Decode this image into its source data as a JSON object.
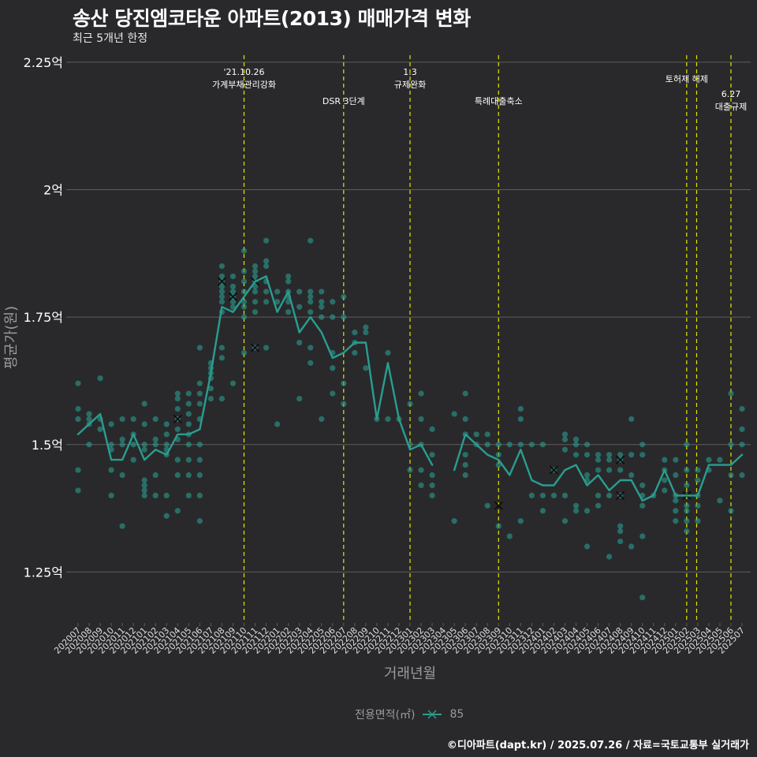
{
  "title": "송산 당진엠코타운 아파트(2013) 매매가격 변화",
  "subtitle": "최근 5개년 한정",
  "footer": "©디아파트(dapt.kr) / 2025.07.26 / 자료=국토교통부 실거래가",
  "colors": {
    "background": "#29292b",
    "series": "#2a9d8f",
    "grid": "#5e5e5e",
    "event_line": "#e6e600",
    "axis_text": "#ffffff",
    "axis_title": "#9a9a9a"
  },
  "chart_data": {
    "type": "line",
    "xlabel": "거래년월",
    "ylabel": "평균가(원)",
    "ylim": [
      1.15,
      2.27
    ],
    "yticks": [
      {
        "value": 1.25,
        "label": "1.25억"
      },
      {
        "value": 1.5,
        "label": "1.5억"
      },
      {
        "value": 1.75,
        "label": "1.75억"
      },
      {
        "value": 2.0,
        "label": "2억"
      },
      {
        "value": 2.25,
        "label": "2.25억"
      }
    ],
    "grid": true,
    "legend_position": "bottom",
    "legend_title": "전용면적(㎡)",
    "categories": [
      "202007",
      "202008",
      "202009",
      "202010",
      "202011",
      "202012",
      "202101",
      "202102",
      "202103",
      "202104",
      "202105",
      "202106",
      "202107",
      "202108",
      "202109",
      "202110",
      "202111",
      "202112",
      "202201",
      "202202",
      "202203",
      "202204",
      "202205",
      "202206",
      "202207",
      "202208",
      "202209",
      "202210",
      "202211",
      "202212",
      "202301",
      "202302",
      "202303",
      "202304",
      "202305",
      "202306",
      "202307",
      "202308",
      "202309",
      "202310",
      "202311",
      "202312",
      "202401",
      "202402",
      "202403",
      "202404",
      "202405",
      "202406",
      "202407",
      "202408",
      "202409",
      "202410",
      "202411",
      "202412",
      "202501",
      "202502",
      "202503",
      "202504",
      "202505",
      "202506",
      "202507"
    ],
    "series": [
      {
        "name": "85",
        "values": [
          1.52,
          1.54,
          1.56,
          1.47,
          1.47,
          1.52,
          1.47,
          1.49,
          1.48,
          1.52,
          1.52,
          1.53,
          1.64,
          1.77,
          1.76,
          1.79,
          1.82,
          1.83,
          1.76,
          1.8,
          1.72,
          1.75,
          1.72,
          1.67,
          1.68,
          1.7,
          1.7,
          1.55,
          1.66,
          1.55,
          1.49,
          1.5,
          1.46,
          null,
          1.45,
          1.52,
          1.5,
          1.48,
          1.47,
          1.44,
          1.49,
          1.43,
          1.42,
          1.42,
          1.45,
          1.46,
          1.42,
          1.44,
          1.41,
          1.43,
          1.43,
          1.39,
          1.4,
          1.45,
          1.4,
          1.4,
          1.4,
          1.46,
          1.46,
          1.46,
          1.48
        ]
      }
    ],
    "scatter": [
      [
        0,
        1.62
      ],
      [
        0,
        1.57
      ],
      [
        0,
        1.55
      ],
      [
        0,
        1.45
      ],
      [
        0,
        1.41
      ],
      [
        1,
        1.56
      ],
      [
        1,
        1.55
      ],
      [
        1,
        1.54
      ],
      [
        1,
        1.5
      ],
      [
        2,
        1.63
      ],
      [
        2,
        1.55
      ],
      [
        2,
        1.53
      ],
      [
        3,
        1.54
      ],
      [
        3,
        1.5
      ],
      [
        3,
        1.49
      ],
      [
        3,
        1.45
      ],
      [
        3,
        1.4
      ],
      [
        4,
        1.55
      ],
      [
        4,
        1.51
      ],
      [
        4,
        1.5
      ],
      [
        4,
        1.44
      ],
      [
        4,
        1.34
      ],
      [
        5,
        1.55
      ],
      [
        5,
        1.52
      ],
      [
        5,
        1.5
      ],
      [
        5,
        1.47
      ],
      [
        6,
        1.58
      ],
      [
        6,
        1.54
      ],
      [
        6,
        1.5
      ],
      [
        6,
        1.49
      ],
      [
        6,
        1.43
      ],
      [
        6,
        1.42
      ],
      [
        6,
        1.41
      ],
      [
        6,
        1.4
      ],
      [
        7,
        1.55
      ],
      [
        7,
        1.51
      ],
      [
        7,
        1.5
      ],
      [
        7,
        1.44
      ],
      [
        7,
        1.4
      ],
      [
        8,
        1.54
      ],
      [
        8,
        1.52
      ],
      [
        8,
        1.5
      ],
      [
        8,
        1.49
      ],
      [
        8,
        1.48
      ],
      [
        8,
        1.4
      ],
      [
        8,
        1.36
      ],
      [
        9,
        1.6
      ],
      [
        9,
        1.59
      ],
      [
        9,
        1.57
      ],
      [
        9,
        1.55
      ],
      [
        9,
        1.53
      ],
      [
        9,
        1.51
      ],
      [
        9,
        1.47
      ],
      [
        9,
        1.44
      ],
      [
        9,
        1.37
      ],
      [
        10,
        1.6
      ],
      [
        10,
        1.58
      ],
      [
        10,
        1.56
      ],
      [
        10,
        1.54
      ],
      [
        10,
        1.52
      ],
      [
        10,
        1.5
      ],
      [
        10,
        1.47
      ],
      [
        10,
        1.44
      ],
      [
        10,
        1.4
      ],
      [
        11,
        1.69
      ],
      [
        11,
        1.62
      ],
      [
        11,
        1.6
      ],
      [
        11,
        1.58
      ],
      [
        11,
        1.55
      ],
      [
        11,
        1.5
      ],
      [
        11,
        1.47
      ],
      [
        11,
        1.44
      ],
      [
        11,
        1.4
      ],
      [
        11,
        1.35
      ],
      [
        12,
        1.66
      ],
      [
        12,
        1.65
      ],
      [
        12,
        1.64
      ],
      [
        12,
        1.63
      ],
      [
        12,
        1.61
      ],
      [
        12,
        1.59
      ],
      [
        13,
        1.85
      ],
      [
        13,
        1.83
      ],
      [
        13,
        1.82
      ],
      [
        13,
        1.81
      ],
      [
        13,
        1.8
      ],
      [
        13,
        1.79
      ],
      [
        13,
        1.78
      ],
      [
        13,
        1.76
      ],
      [
        13,
        1.69
      ],
      [
        13,
        1.67
      ],
      [
        13,
        1.59
      ],
      [
        14,
        1.83
      ],
      [
        14,
        1.81
      ],
      [
        14,
        1.8
      ],
      [
        14,
        1.79
      ],
      [
        14,
        1.78
      ],
      [
        14,
        1.77
      ],
      [
        14,
        1.62
      ],
      [
        15,
        1.88
      ],
      [
        15,
        1.84
      ],
      [
        15,
        1.82
      ],
      [
        15,
        1.8
      ],
      [
        15,
        1.78
      ],
      [
        15,
        1.77
      ],
      [
        15,
        1.75
      ],
      [
        15,
        1.68
      ],
      [
        16,
        1.85
      ],
      [
        16,
        1.84
      ],
      [
        16,
        1.83
      ],
      [
        16,
        1.82
      ],
      [
        16,
        1.81
      ],
      [
        16,
        1.8
      ],
      [
        16,
        1.78
      ],
      [
        16,
        1.76
      ],
      [
        16,
        1.69
      ],
      [
        17,
        1.9
      ],
      [
        17,
        1.86
      ],
      [
        17,
        1.85
      ],
      [
        17,
        1.82
      ],
      [
        17,
        1.8
      ],
      [
        17,
        1.78
      ],
      [
        17,
        1.69
      ],
      [
        18,
        1.8
      ],
      [
        18,
        1.78
      ],
      [
        18,
        1.54
      ],
      [
        19,
        1.83
      ],
      [
        19,
        1.82
      ],
      [
        19,
        1.8
      ],
      [
        19,
        1.79
      ],
      [
        19,
        1.78
      ],
      [
        19,
        1.76
      ],
      [
        20,
        1.8
      ],
      [
        20,
        1.77
      ],
      [
        20,
        1.7
      ],
      [
        20,
        1.59
      ],
      [
        21,
        1.9
      ],
      [
        21,
        1.8
      ],
      [
        21,
        1.79
      ],
      [
        21,
        1.78
      ],
      [
        21,
        1.76
      ],
      [
        21,
        1.69
      ],
      [
        21,
        1.66
      ],
      [
        22,
        1.8
      ],
      [
        22,
        1.78
      ],
      [
        22,
        1.77
      ],
      [
        22,
        1.75
      ],
      [
        22,
        1.55
      ],
      [
        23,
        1.78
      ],
      [
        23,
        1.75
      ],
      [
        23,
        1.68
      ],
      [
        23,
        1.65
      ],
      [
        23,
        1.6
      ],
      [
        24,
        1.79
      ],
      [
        24,
        1.75
      ],
      [
        24,
        1.62
      ],
      [
        24,
        1.58
      ],
      [
        25,
        1.72
      ],
      [
        25,
        1.7
      ],
      [
        25,
        1.68
      ],
      [
        26,
        1.73
      ],
      [
        26,
        1.72
      ],
      [
        26,
        1.65
      ],
      [
        27,
        1.55
      ],
      [
        28,
        1.68
      ],
      [
        28,
        1.55
      ],
      [
        29,
        1.55
      ],
      [
        30,
        1.58
      ],
      [
        30,
        1.5
      ],
      [
        30,
        1.45
      ],
      [
        31,
        1.6
      ],
      [
        31,
        1.55
      ],
      [
        31,
        1.5
      ],
      [
        31,
        1.45
      ],
      [
        31,
        1.42
      ],
      [
        32,
        1.53
      ],
      [
        32,
        1.48
      ],
      [
        32,
        1.44
      ],
      [
        32,
        1.42
      ],
      [
        32,
        1.4
      ],
      [
        34,
        1.56
      ],
      [
        34,
        1.35
      ],
      [
        35,
        1.6
      ],
      [
        35,
        1.55
      ],
      [
        35,
        1.52
      ],
      [
        35,
        1.48
      ],
      [
        35,
        1.46
      ],
      [
        35,
        1.44
      ],
      [
        36,
        1.52
      ],
      [
        36,
        1.5
      ],
      [
        37,
        1.52
      ],
      [
        37,
        1.5
      ],
      [
        37,
        1.38
      ],
      [
        38,
        1.5
      ],
      [
        38,
        1.48
      ],
      [
        38,
        1.46
      ],
      [
        38,
        1.34
      ],
      [
        39,
        1.5
      ],
      [
        39,
        1.32
      ],
      [
        40,
        1.57
      ],
      [
        40,
        1.55
      ],
      [
        40,
        1.5
      ],
      [
        40,
        1.35
      ],
      [
        41,
        1.5
      ],
      [
        41,
        1.4
      ],
      [
        42,
        1.5
      ],
      [
        42,
        1.4
      ],
      [
        42,
        1.37
      ],
      [
        43,
        1.45
      ],
      [
        43,
        1.4
      ],
      [
        44,
        1.52
      ],
      [
        44,
        1.51
      ],
      [
        44,
        1.49
      ],
      [
        44,
        1.4
      ],
      [
        44,
        1.35
      ],
      [
        45,
        1.51
      ],
      [
        45,
        1.5
      ],
      [
        45,
        1.48
      ],
      [
        45,
        1.38
      ],
      [
        45,
        1.37
      ],
      [
        46,
        1.5
      ],
      [
        46,
        1.48
      ],
      [
        46,
        1.44
      ],
      [
        46,
        1.43
      ],
      [
        46,
        1.37
      ],
      [
        46,
        1.3
      ],
      [
        47,
        1.48
      ],
      [
        47,
        1.47
      ],
      [
        47,
        1.45
      ],
      [
        47,
        1.4
      ],
      [
        47,
        1.38
      ],
      [
        48,
        1.48
      ],
      [
        48,
        1.47
      ],
      [
        48,
        1.45
      ],
      [
        48,
        1.4
      ],
      [
        48,
        1.28
      ],
      [
        49,
        1.48
      ],
      [
        49,
        1.47
      ],
      [
        49,
        1.45
      ],
      [
        49,
        1.4
      ],
      [
        49,
        1.34
      ],
      [
        49,
        1.33
      ],
      [
        49,
        1.31
      ],
      [
        50,
        1.55
      ],
      [
        50,
        1.48
      ],
      [
        50,
        1.44
      ],
      [
        50,
        1.3
      ],
      [
        51,
        1.5
      ],
      [
        51,
        1.48
      ],
      [
        51,
        1.42
      ],
      [
        51,
        1.4
      ],
      [
        51,
        1.38
      ],
      [
        51,
        1.32
      ],
      [
        51,
        1.2
      ],
      [
        52,
        1.4
      ],
      [
        53,
        1.47
      ],
      [
        53,
        1.45
      ],
      [
        53,
        1.43
      ],
      [
        53,
        1.41
      ],
      [
        54,
        1.47
      ],
      [
        54,
        1.44
      ],
      [
        54,
        1.4
      ],
      [
        54,
        1.39
      ],
      [
        54,
        1.37
      ],
      [
        54,
        1.35
      ],
      [
        55,
        1.5
      ],
      [
        55,
        1.45
      ],
      [
        55,
        1.42
      ],
      [
        55,
        1.4
      ],
      [
        55,
        1.38
      ],
      [
        55,
        1.37
      ],
      [
        55,
        1.35
      ],
      [
        55,
        1.33
      ],
      [
        56,
        1.45
      ],
      [
        56,
        1.43
      ],
      [
        56,
        1.4
      ],
      [
        56,
        1.38
      ],
      [
        56,
        1.35
      ],
      [
        57,
        1.47
      ],
      [
        57,
        1.45
      ],
      [
        58,
        1.47
      ],
      [
        58,
        1.39
      ],
      [
        59,
        1.6
      ],
      [
        59,
        1.5
      ],
      [
        59,
        1.44
      ],
      [
        59,
        1.37
      ],
      [
        60,
        1.57
      ],
      [
        60,
        1.53
      ],
      [
        60,
        1.5
      ],
      [
        60,
        1.44
      ]
    ],
    "crosses": [
      [
        13,
        1.82
      ],
      [
        14,
        1.79
      ],
      [
        16,
        1.82
      ],
      [
        16,
        1.69
      ],
      [
        38,
        1.38
      ],
      [
        43,
        1.45
      ],
      [
        49,
        1.47
      ],
      [
        49,
        1.4
      ],
      [
        55,
        1.4
      ],
      [
        9,
        1.55
      ]
    ],
    "annotations": [
      {
        "x": 15.0,
        "lines": [
          "'21.10.26",
          "가계부채관리강화"
        ],
        "row": 0
      },
      {
        "x": 24.0,
        "lines": [
          "DSR 3단계"
        ],
        "row": 2
      },
      {
        "x": 30.0,
        "lines": [
          "1.3",
          "규제완화"
        ],
        "row": 0
      },
      {
        "x": 38.0,
        "lines": [
          "특례대출축소"
        ],
        "row": 2
      },
      {
        "x": 55.0,
        "lines": [
          "토허제 해제"
        ],
        "row": 1
      },
      {
        "x": 55.9,
        "lines": [],
        "row": 0
      },
      {
        "x": 59.0,
        "lines": [
          "6.27",
          "대출규제"
        ],
        "row": 3
      }
    ]
  }
}
